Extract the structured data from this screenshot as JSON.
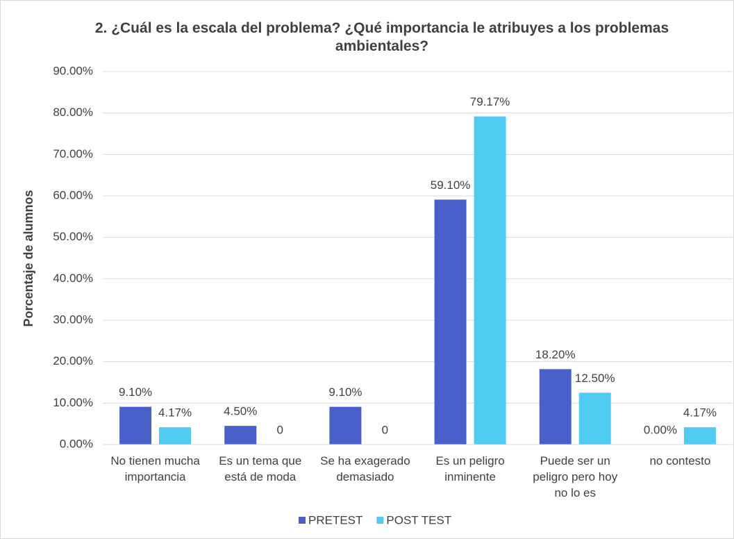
{
  "chart_data": {
    "type": "bar",
    "title": "2. ¿Cuál es la escala del problema? ¿Qué importancia le atribuyes a los problemas ambientales?",
    "y_label": "Porcentaje de alumnos",
    "categories": [
      "No tienen mucha importancia",
      "Es un tema que está de moda",
      "Se ha exagerado demasiado",
      "Es un peligro inminente",
      "Puede ser un peligro pero hoy no lo es",
      "no contesto"
    ],
    "series": [
      {
        "name": "PRETEST",
        "color": "#4a5fc9",
        "values": [
          9.1,
          4.5,
          9.1,
          59.1,
          18.2,
          0
        ],
        "value_labels": [
          "9.10%",
          "4.50%",
          "9.10%",
          "59.10%",
          "18.20%",
          "0.00%"
        ]
      },
      {
        "name": "POST TEST",
        "color": "#4fcaf0",
        "values": [
          4.17,
          0,
          0,
          79.17,
          12.5,
          4.17
        ],
        "value_labels": [
          "4.17%",
          "0",
          "0",
          "79.17%",
          "12.50%",
          "4.17%"
        ]
      }
    ],
    "ylim": [
      0,
      90
    ],
    "yticks": [
      {
        "value": 0,
        "label": "0.00%"
      },
      {
        "value": 10,
        "label": "10.00%"
      },
      {
        "value": 20,
        "label": "20.00%"
      },
      {
        "value": 30,
        "label": "30.00%"
      },
      {
        "value": 40,
        "label": "40.00%"
      },
      {
        "value": 50,
        "label": "50.00%"
      },
      {
        "value": 60,
        "label": "60.00%"
      },
      {
        "value": 70,
        "label": "70.00%"
      },
      {
        "value": 80,
        "label": "80.00%"
      },
      {
        "value": 90,
        "label": "90.00%"
      }
    ],
    "grid": true,
    "legend": "bottom"
  }
}
